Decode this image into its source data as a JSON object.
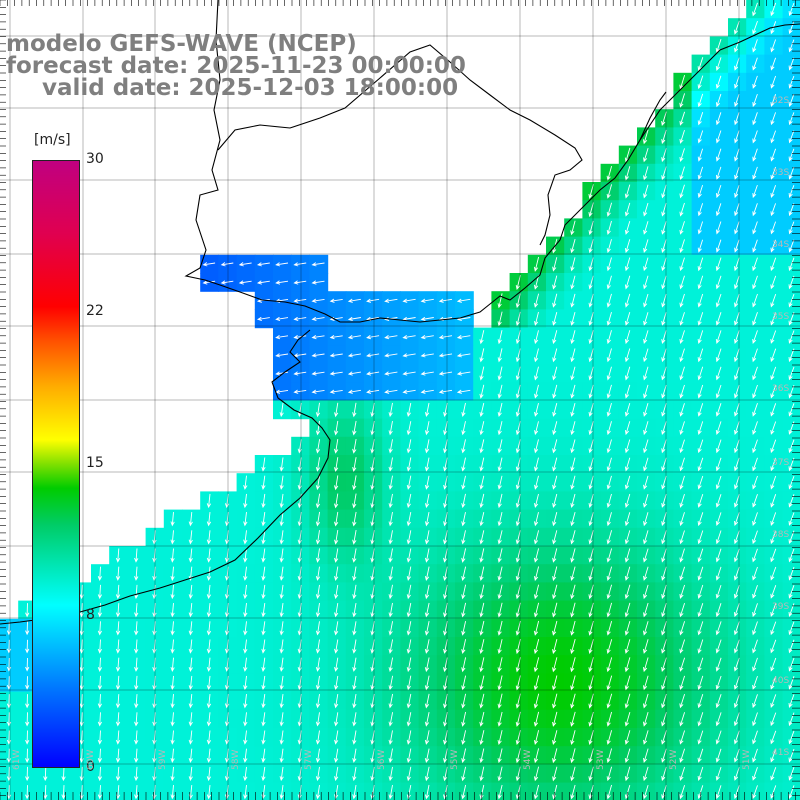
{
  "title": {
    "line1": "modelo GEFS-WAVE (NCEP)",
    "line2": "forecast date: 2025-11-23 00:00:00",
    "line3": "valid date: 2025-12-03 18:00:00"
  },
  "colorbar": {
    "unit": "[m/s]",
    "ticks": [
      "30",
      "22",
      "15",
      "8",
      "0"
    ],
    "tick_values": [
      30,
      22,
      15,
      8,
      0
    ],
    "colors": [
      "#0000ff",
      "#00ffff",
      "#00cc00",
      "#ffff00",
      "#ff0000",
      "#c00080"
    ]
  },
  "lat_labels": [
    "32S",
    "33S",
    "34S",
    "35S",
    "36S",
    "37S",
    "38S",
    "39S",
    "40S",
    "41S"
  ],
  "lon_labels": [
    "61W",
    "60W",
    "59W",
    "58W",
    "57W",
    "56W",
    "55W",
    "54W",
    "53W",
    "52W",
    "51W"
  ],
  "colors": {
    "land": "#ffffff",
    "coast": "#000000",
    "grid": "#000000",
    "arrow": "#ffffff",
    "title": "#7f7f7f"
  }
}
